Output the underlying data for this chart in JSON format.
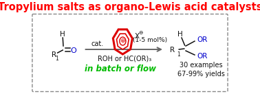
{
  "title": "Tropylium salts as organo-Lewis acid catalysts",
  "title_color": "#ff0000",
  "title_fontsize": 10.5,
  "bg_color": "#ffffff",
  "box_color": "#888888",
  "cat_text": "cat.",
  "mol_percent": "(1-5 mol%)",
  "roh_text": "ROH or HC(OR)₃",
  "flow_text": "in batch or flow",
  "flow_color": "#00bb00",
  "examples_text": "30 examples",
  "yields_text": "67-99% yields",
  "tropylium_color": "#dd0000",
  "product_or_color": "#0000cc",
  "arrow_color": "#666666",
  "bond_color": "#111111",
  "sub_fontsize": 5.5,
  "label_fontsize": 7.5,
  "small_fontsize": 7.0
}
